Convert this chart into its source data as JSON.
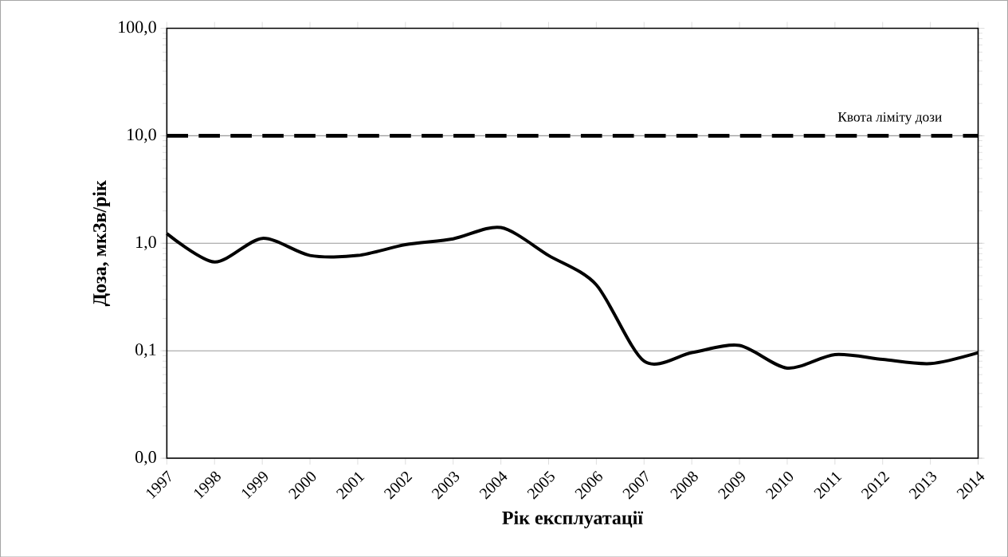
{
  "chart_data": {
    "type": "line",
    "xlabel": "Рік експлуатації",
    "ylabel": "Доза, мкЗв/рік",
    "x": [
      1997,
      1998,
      1999,
      2000,
      2001,
      2002,
      2003,
      2004,
      2005,
      2006,
      2007,
      2008,
      2009,
      2010,
      2011,
      2012,
      2013,
      2014
    ],
    "series": [
      {
        "color": "#000000",
        "values": [
          1.23,
          0.67,
          1.11,
          0.77,
          0.77,
          0.97,
          1.1,
          1.4,
          0.77,
          0.41,
          0.08,
          0.096,
          0.112,
          0.069,
          0.092,
          0.083,
          0.076,
          0.096
        ]
      }
    ],
    "xlim": [
      1997,
      2014
    ],
    "xticks": [
      1997,
      1998,
      1999,
      2000,
      2001,
      2002,
      2003,
      2004,
      2005,
      2006,
      2007,
      2008,
      2009,
      2010,
      2011,
      2012,
      2013,
      2014
    ],
    "ylim": [
      0.01,
      100
    ],
    "yticks": [
      {
        "value": 0.01,
        "label": "0,0"
      },
      {
        "value": 0.1,
        "label": "0,1"
      },
      {
        "value": 1,
        "label": "1,0"
      },
      {
        "value": 10,
        "label": "10,0"
      },
      {
        "value": 100,
        "label": "100,0"
      }
    ],
    "log": "y",
    "grid": "y",
    "marker": "none",
    "line_style": "solid",
    "ref_lines": [
      {
        "axis": "y",
        "value": 10,
        "label": "Квота ліміту дози",
        "line_style": "dashed",
        "color": "#000000"
      }
    ]
  }
}
